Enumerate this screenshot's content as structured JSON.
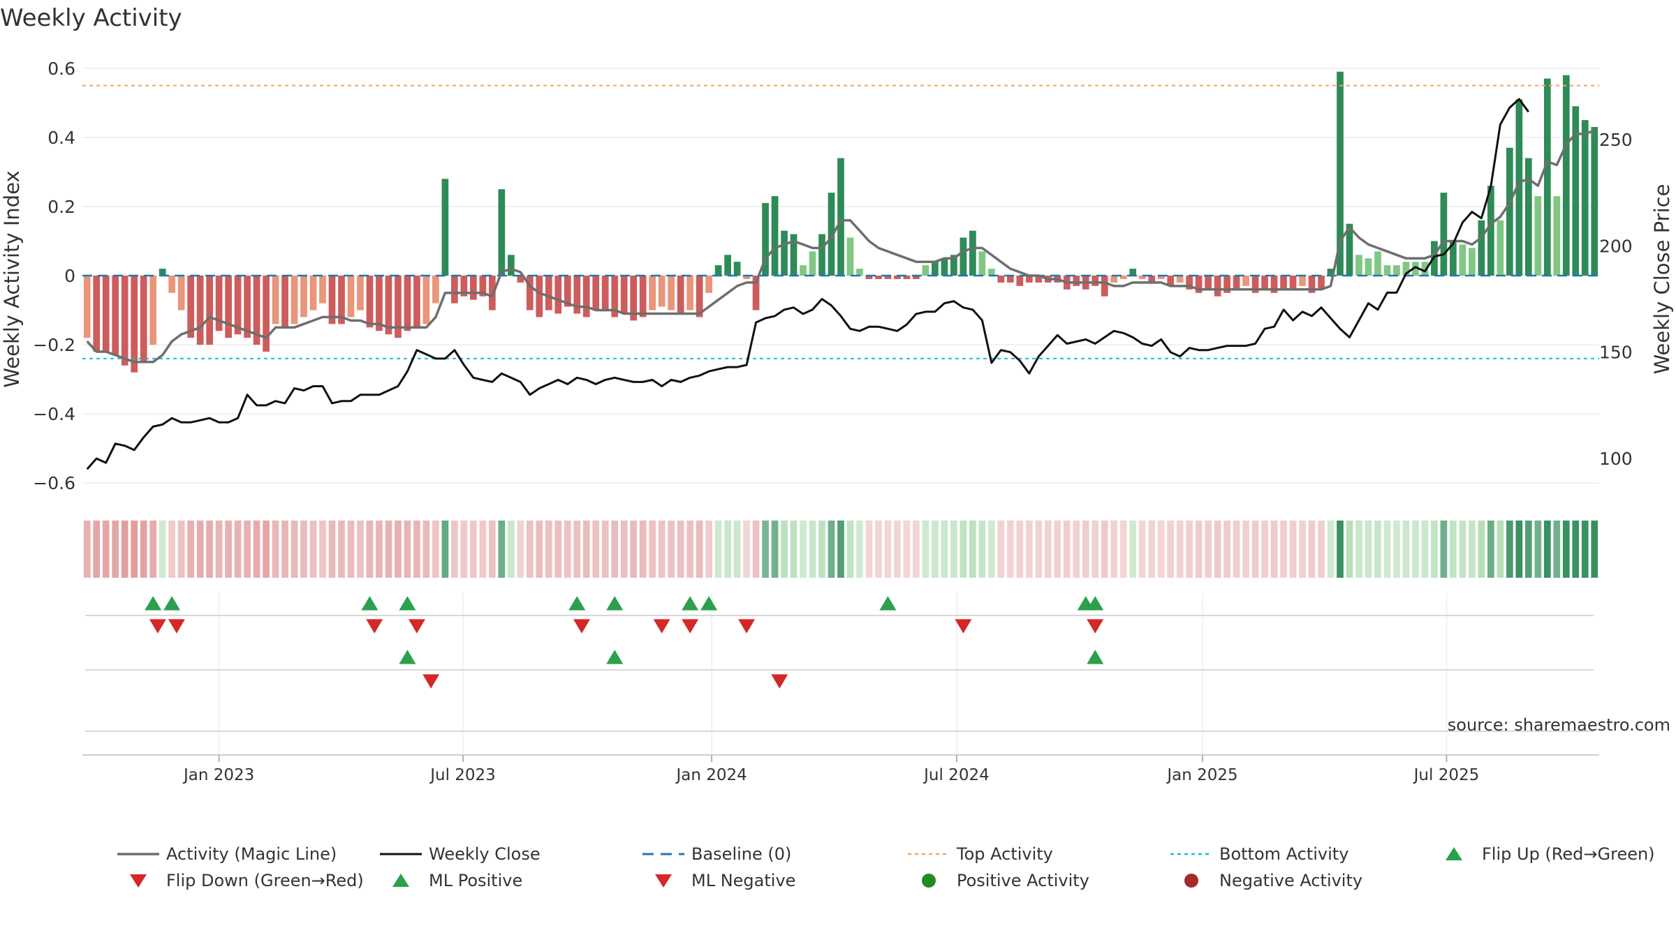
{
  "chart_data": {
    "type": "bar",
    "title": "Weekly Activity",
    "ylabel": "Weekly Activity Index",
    "y2label": "Weekly Close Price",
    "ylim": [
      -0.64,
      0.64
    ],
    "y2lim": [
      82,
      290
    ],
    "yticks": [
      "0.6",
      "0.4",
      "0.2",
      "0",
      "−0.2",
      "−0.4",
      "−0.6"
    ],
    "ytick_values": [
      0.6,
      0.4,
      0.2,
      0,
      -0.2,
      -0.4,
      -0.6
    ],
    "y2ticks": [
      "250",
      "200",
      "150",
      "100"
    ],
    "y2tick_values": [
      250,
      200,
      150,
      100
    ],
    "x_start": "2022-09-26",
    "x_end": "2025-09-29",
    "xticks": [
      {
        "label": "Jan 2023",
        "week": 14.0
      },
      {
        "label": "Jul 2023",
        "week": 39.9
      },
      {
        "label": "Jan 2024",
        "week": 66.3
      },
      {
        "label": "Jul 2024",
        "week": 92.3
      },
      {
        "label": "Jan 2025",
        "week": 118.4
      },
      {
        "label": "Jul 2025",
        "week": 144.3
      }
    ],
    "top_activity": 0.55,
    "bottom_activity": -0.24,
    "activity": [
      -0.18,
      -0.22,
      -0.22,
      -0.23,
      -0.26,
      -0.28,
      -0.25,
      -0.2,
      0.02,
      -0.05,
      -0.1,
      -0.18,
      -0.2,
      -0.2,
      -0.16,
      -0.18,
      -0.17,
      -0.18,
      -0.2,
      -0.22,
      -0.14,
      -0.15,
      -0.14,
      -0.12,
      -0.1,
      -0.08,
      -0.14,
      -0.14,
      -0.12,
      -0.1,
      -0.15,
      -0.16,
      -0.17,
      -0.18,
      -0.16,
      -0.15,
      -0.14,
      -0.08,
      0.28,
      -0.08,
      -0.06,
      -0.07,
      -0.06,
      -0.1,
      0.25,
      0.06,
      -0.02,
      -0.1,
      -0.12,
      -0.1,
      -0.11,
      -0.09,
      -0.11,
      -0.12,
      -0.1,
      -0.1,
      -0.12,
      -0.11,
      -0.13,
      -0.12,
      -0.1,
      -0.09,
      -0.1,
      -0.11,
      -0.1,
      -0.12,
      -0.05,
      0.03,
      0.06,
      0.04,
      -0.01,
      -0.1,
      0.21,
      0.23,
      0.13,
      0.12,
      0.03,
      0.07,
      0.12,
      0.24,
      0.34,
      0.11,
      0.02,
      -0.01,
      -0.01,
      -0.01,
      -0.01,
      -0.01,
      -0.01,
      0.03,
      0.04,
      0.05,
      0.06,
      0.11,
      0.13,
      0.07,
      0.02,
      -0.02,
      -0.02,
      -0.03,
      -0.02,
      -0.02,
      -0.02,
      -0.02,
      -0.04,
      -0.03,
      -0.04,
      -0.03,
      -0.06,
      -0.02,
      -0.01,
      0.02,
      -0.01,
      -0.02,
      -0.01,
      -0.03,
      -0.02,
      -0.04,
      -0.05,
      -0.04,
      -0.06,
      -0.05,
      -0.04,
      -0.03,
      -0.05,
      -0.04,
      -0.05,
      -0.04,
      -0.04,
      -0.03,
      -0.05,
      -0.04,
      0.02,
      0.59,
      0.15,
      0.06,
      0.05,
      0.07,
      0.03,
      0.03,
      0.04,
      0.04,
      0.04,
      0.1,
      0.24,
      0.1,
      0.09,
      0.08,
      0.16,
      0.26,
      0.16,
      0.37,
      0.51,
      0.34,
      0.23,
      0.57,
      0.23,
      0.58,
      0.49,
      0.45,
      0.43
    ],
    "magic_line": [
      -0.19,
      -0.22,
      -0.22,
      -0.23,
      -0.24,
      -0.25,
      -0.25,
      -0.25,
      -0.23,
      -0.19,
      -0.17,
      -0.16,
      -0.15,
      -0.12,
      -0.13,
      -0.14,
      -0.15,
      -0.16,
      -0.17,
      -0.18,
      -0.15,
      -0.15,
      -0.15,
      -0.14,
      -0.13,
      -0.12,
      -0.12,
      -0.12,
      -0.13,
      -0.13,
      -0.14,
      -0.14,
      -0.15,
      -0.15,
      -0.15,
      -0.15,
      -0.15,
      -0.12,
      -0.05,
      -0.05,
      -0.05,
      -0.05,
      -0.05,
      -0.06,
      0.01,
      0.02,
      0.01,
      -0.03,
      -0.05,
      -0.06,
      -0.07,
      -0.08,
      -0.09,
      -0.09,
      -0.1,
      -0.1,
      -0.1,
      -0.11,
      -0.11,
      -0.11,
      -0.11,
      -0.11,
      -0.11,
      -0.11,
      -0.11,
      -0.11,
      -0.09,
      -0.07,
      -0.05,
      -0.03,
      -0.02,
      -0.02,
      0.05,
      0.08,
      0.09,
      0.1,
      0.09,
      0.08,
      0.08,
      0.11,
      0.16,
      0.16,
      0.13,
      0.1,
      0.08,
      0.07,
      0.06,
      0.05,
      0.04,
      0.04,
      0.04,
      0.05,
      0.05,
      0.07,
      0.08,
      0.08,
      0.06,
      0.04,
      0.02,
      0.01,
      0.0,
      0.0,
      -0.01,
      -0.01,
      -0.02,
      -0.02,
      -0.02,
      -0.02,
      -0.02,
      -0.03,
      -0.03,
      -0.02,
      -0.02,
      -0.02,
      -0.02,
      -0.03,
      -0.03,
      -0.03,
      -0.04,
      -0.04,
      -0.04,
      -0.04,
      -0.04,
      -0.04,
      -0.04,
      -0.04,
      -0.04,
      -0.04,
      -0.04,
      -0.04,
      -0.04,
      -0.04,
      -0.03,
      0.1,
      0.14,
      0.11,
      0.09,
      0.08,
      0.07,
      0.06,
      0.05,
      0.05,
      0.05,
      0.06,
      0.1,
      0.1,
      0.1,
      0.09,
      0.11,
      0.15,
      0.17,
      0.21,
      0.27,
      0.28,
      0.26,
      0.33,
      0.32,
      0.38,
      0.41,
      0.41,
      0.42
    ],
    "weekly_close": [
      95.0,
      100.0,
      98.0,
      107.0,
      106.0,
      104.0,
      110.0,
      115.0,
      116.0,
      119.0,
      117.0,
      117.0,
      118.0,
      119.0,
      117.0,
      117.0,
      119.0,
      130.0,
      125.0,
      125.0,
      127.0,
      126.0,
      133.0,
      132.0,
      134.0,
      134.0,
      126.0,
      127.0,
      127.0,
      130.0,
      130.0,
      130.0,
      132.0,
      134.0,
      141.0,
      151.0,
      149.0,
      147.0,
      147.0,
      151.0,
      144.0,
      138.0,
      137.0,
      136.0,
      140.0,
      138.0,
      136.0,
      130.0,
      133.0,
      135.0,
      137.0,
      135.0,
      138.0,
      137.0,
      135.0,
      137.0,
      138.0,
      137.0,
      136.0,
      136.0,
      137.0,
      134.0,
      137.0,
      136.0,
      138.0,
      139.0,
      141.0,
      142.0,
      143.0,
      143.0,
      144.0,
      164.0,
      166.0,
      167.0,
      170.0,
      171.0,
      168.0,
      170.0,
      175.0,
      172.0,
      167.0,
      161.0,
      160.0,
      162.0,
      162.0,
      161.0,
      160.0,
      163.0,
      168.0,
      169.0,
      169.0,
      173.0,
      174.0,
      171.0,
      170.0,
      165.0,
      145.0,
      151.0,
      150.0,
      146.0,
      140.0,
      148.0,
      153.0,
      158.0,
      154.0,
      155.0,
      156.0,
      154.0,
      157.0,
      160.0,
      159.0,
      157.0,
      154.0,
      153.0,
      156.0,
      150.0,
      148.0,
      152.0,
      151.0,
      151.0,
      152.0,
      153.0,
      153.0,
      153.0,
      154.0,
      161.0,
      162.0,
      170.0,
      165.0,
      169.0,
      167.0,
      171.0,
      166.0,
      161.0,
      157.0,
      165.0,
      173.0,
      170.0,
      178.0,
      178.0,
      187.0,
      190.0,
      188.0,
      195.0,
      196.0,
      201.0,
      211.0,
      216.0,
      213.0,
      228.0,
      257.0,
      265.0,
      269.0,
      263.0
    ],
    "legend": {
      "magic_line": "Activity (Magic Line)",
      "weekly_close": "Weekly Close",
      "baseline": "Baseline (0)",
      "top": "Top Activity",
      "bottom": "Bottom Activity",
      "flip_up": "Flip Up (Red→Green)",
      "flip_down": "Flip Down (Green→Red)",
      "ml_positive": "ML Positive",
      "ml_negative": "ML Negative",
      "positive": "Positive Activity",
      "negative": "Negative Activity"
    },
    "flip_up_weeks": [
      7,
      9,
      30,
      34,
      52,
      56,
      64,
      66,
      85,
      106,
      107
    ],
    "flip_down_weeks": [
      7.5,
      9.5,
      30.5,
      35,
      52.5,
      61,
      64,
      70,
      93,
      107
    ],
    "ml_positive_weeks": [
      34,
      56,
      107
    ],
    "ml_negative_weeks": [
      36.5,
      73.5
    ],
    "colors": {
      "pos_strong": "#2e8b57",
      "pos_light": "#81c784",
      "neg_strong": "#cd5c5c",
      "neg_light": "#e9967a",
      "magic": "#6e6e6e",
      "close": "#111111",
      "baseline": "#1f77b4",
      "top": "#f4a460",
      "bottom": "#17becf",
      "marker_up": "#2ca04c",
      "marker_down": "#d62728",
      "neg_dot": "#a52a2a",
      "pos_dot": "#228b22"
    }
  },
  "source": "source: sharemaestro.com"
}
